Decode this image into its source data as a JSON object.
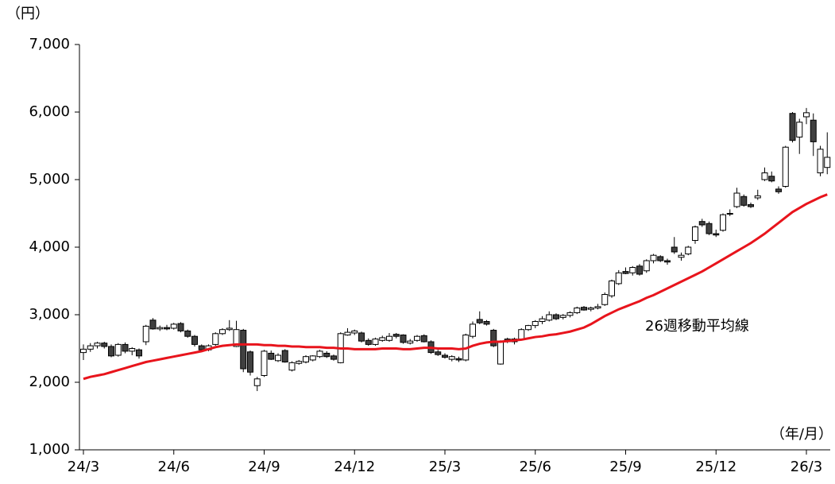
{
  "chart_data": {
    "type": "candlestick",
    "y_unit_label": "（円）",
    "x_unit_label": "（年/月）",
    "ylim": [
      1000,
      7000
    ],
    "yticks": [
      {
        "value": 1000,
        "label": "1,000"
      },
      {
        "value": 2000,
        "label": "2,000"
      },
      {
        "value": 3000,
        "label": "3,000"
      },
      {
        "value": 4000,
        "label": "4,000"
      },
      {
        "value": 5000,
        "label": "5,000"
      },
      {
        "value": 6000,
        "label": "6,000"
      },
      {
        "value": 7000,
        "label": "7,000"
      }
    ],
    "categories": [
      "24/3",
      null,
      null,
      null,
      null,
      null,
      null,
      null,
      null,
      null,
      null,
      null,
      null,
      "24/6",
      null,
      null,
      null,
      null,
      null,
      null,
      null,
      null,
      null,
      null,
      null,
      null,
      "24/9",
      null,
      null,
      null,
      null,
      null,
      null,
      null,
      null,
      null,
      null,
      null,
      null,
      "24/12",
      null,
      null,
      null,
      null,
      null,
      null,
      null,
      null,
      null,
      null,
      null,
      null,
      "25/3",
      null,
      null,
      null,
      null,
      null,
      null,
      null,
      null,
      null,
      null,
      null,
      null,
      "25/6",
      null,
      null,
      null,
      null,
      null,
      null,
      null,
      null,
      null,
      null,
      null,
      null,
      "25/9",
      null,
      null,
      null,
      null,
      null,
      null,
      null,
      null,
      null,
      null,
      null,
      null,
      "25/12",
      null,
      null,
      null,
      null,
      null,
      null,
      null,
      null,
      null,
      null,
      null,
      null,
      "26/3",
      null,
      null,
      null
    ],
    "up_color": "#ffffff",
    "down_color": "#404040",
    "candles": [
      [
        2440,
        2560,
        2330,
        2490
      ],
      [
        2490,
        2580,
        2450,
        2540
      ],
      [
        2540,
        2600,
        2500,
        2580
      ],
      [
        2580,
        2600,
        2500,
        2530
      ],
      [
        2530,
        2560,
        2370,
        2390
      ],
      [
        2400,
        2580,
        2380,
        2560
      ],
      [
        2560,
        2590,
        2430,
        2460
      ],
      [
        2460,
        2520,
        2400,
        2500
      ],
      [
        2480,
        2500,
        2350,
        2390
      ],
      [
        2600,
        2850,
        2550,
        2830
      ],
      [
        2920,
        2950,
        2780,
        2790
      ],
      [
        2790,
        2840,
        2760,
        2810
      ],
      [
        2810,
        2850,
        2770,
        2790
      ],
      [
        2800,
        2880,
        2780,
        2860
      ],
      [
        2870,
        2890,
        2740,
        2760
      ],
      [
        2760,
        2780,
        2660,
        2680
      ],
      [
        2680,
        2700,
        2530,
        2560
      ],
      [
        2540,
        2560,
        2460,
        2480
      ],
      [
        2480,
        2560,
        2460,
        2540
      ],
      [
        2560,
        2740,
        2540,
        2720
      ],
      [
        2720,
        2800,
        2700,
        2780
      ],
      [
        2780,
        2920,
        2760,
        2800
      ],
      [
        2530,
        2910,
        2520,
        2780
      ],
      [
        2770,
        2790,
        2150,
        2200
      ],
      [
        2450,
        2470,
        2100,
        2150
      ],
      [
        1950,
        2080,
        1870,
        2050
      ],
      [
        2100,
        2480,
        2080,
        2460
      ],
      [
        2430,
        2470,
        2330,
        2340
      ],
      [
        2320,
        2430,
        2300,
        2400
      ],
      [
        2470,
        2490,
        2290,
        2300
      ],
      [
        2180,
        2310,
        2160,
        2290
      ],
      [
        2280,
        2330,
        2260,
        2310
      ],
      [
        2300,
        2400,
        2280,
        2380
      ],
      [
        2330,
        2400,
        2310,
        2390
      ],
      [
        2380,
        2480,
        2360,
        2460
      ],
      [
        2430,
        2460,
        2360,
        2380
      ],
      [
        2390,
        2410,
        2320,
        2340
      ],
      [
        2290,
        2740,
        2280,
        2720
      ],
      [
        2700,
        2800,
        2690,
        2740
      ],
      [
        2730,
        2780,
        2700,
        2760
      ],
      [
        2730,
        2750,
        2590,
        2610
      ],
      [
        2620,
        2650,
        2540,
        2560
      ],
      [
        2560,
        2660,
        2540,
        2640
      ],
      [
        2620,
        2690,
        2600,
        2660
      ],
      [
        2620,
        2730,
        2600,
        2680
      ],
      [
        2710,
        2730,
        2650,
        2680
      ],
      [
        2700,
        2710,
        2570,
        2590
      ],
      [
        2580,
        2640,
        2560,
        2610
      ],
      [
        2620,
        2700,
        2600,
        2680
      ],
      [
        2690,
        2710,
        2590,
        2600
      ],
      [
        2600,
        2620,
        2420,
        2440
      ],
      [
        2450,
        2480,
        2390,
        2410
      ],
      [
        2400,
        2430,
        2350,
        2370
      ],
      [
        2340,
        2400,
        2310,
        2380
      ],
      [
        2350,
        2380,
        2300,
        2330
      ],
      [
        2330,
        2720,
        2310,
        2700
      ],
      [
        2680,
        2900,
        2650,
        2860
      ],
      [
        2930,
        3050,
        2860,
        2880
      ],
      [
        2900,
        2920,
        2840,
        2860
      ],
      [
        2770,
        2790,
        2520,
        2540
      ],
      [
        2270,
        2620,
        2260,
        2600
      ],
      [
        2640,
        2660,
        2580,
        2600
      ],
      [
        2600,
        2660,
        2560,
        2640
      ],
      [
        2640,
        2800,
        2620,
        2780
      ],
      [
        2780,
        2850,
        2760,
        2840
      ],
      [
        2840,
        2920,
        2800,
        2900
      ],
      [
        2900,
        2980,
        2860,
        2940
      ],
      [
        2920,
        3050,
        2900,
        3000
      ],
      [
        3000,
        3020,
        2920,
        2940
      ],
      [
        2960,
        3010,
        2930,
        2990
      ],
      [
        2990,
        3050,
        2960,
        3030
      ],
      [
        3030,
        3120,
        3010,
        3100
      ],
      [
        3110,
        3130,
        3060,
        3070
      ],
      [
        3080,
        3120,
        3050,
        3100
      ],
      [
        3100,
        3160,
        3080,
        3120
      ],
      [
        3150,
        3330,
        3130,
        3300
      ],
      [
        3280,
        3520,
        3250,
        3500
      ],
      [
        3460,
        3660,
        3440,
        3620
      ],
      [
        3640,
        3700,
        3600,
        3610
      ],
      [
        3620,
        3720,
        3580,
        3700
      ],
      [
        3720,
        3750,
        3580,
        3600
      ],
      [
        3650,
        3820,
        3620,
        3800
      ],
      [
        3800,
        3900,
        3760,
        3880
      ],
      [
        3860,
        3880,
        3780,
        3800
      ],
      [
        3800,
        3830,
        3740,
        3780
      ],
      [
        4000,
        4150,
        3900,
        3930
      ],
      [
        3850,
        3920,
        3800,
        3880
      ],
      [
        3900,
        4020,
        3880,
        4000
      ],
      [
        4100,
        4320,
        4050,
        4300
      ],
      [
        4380,
        4420,
        4300,
        4330
      ],
      [
        4350,
        4380,
        4180,
        4200
      ],
      [
        4200,
        4260,
        4150,
        4180
      ],
      [
        4250,
        4500,
        4230,
        4480
      ],
      [
        4490,
        4560,
        4460,
        4500
      ],
      [
        4600,
        4880,
        4580,
        4800
      ],
      [
        4750,
        4780,
        4600,
        4620
      ],
      [
        4630,
        4660,
        4580,
        4600
      ],
      [
        4730,
        4850,
        4700,
        4760
      ],
      [
        5000,
        5180,
        4980,
        5100
      ],
      [
        5050,
        5120,
        4960,
        4980
      ],
      [
        4860,
        4900,
        4790,
        4820
      ],
      [
        4900,
        5500,
        4880,
        5480
      ],
      [
        5980,
        6000,
        5550,
        5580
      ],
      [
        5630,
        5900,
        5380,
        5850
      ],
      [
        5930,
        6060,
        5820,
        5990
      ],
      [
        5880,
        5980,
        5350,
        5560
      ],
      [
        5100,
        5500,
        5050,
        5450
      ],
      [
        5180,
        5700,
        5080,
        5330
      ]
    ],
    "ma": {
      "name": "26週移動平均線",
      "color": "#e8141c",
      "values": [
        2050,
        2080,
        2100,
        2120,
        2150,
        2180,
        2210,
        2240,
        2270,
        2300,
        2320,
        2340,
        2360,
        2380,
        2400,
        2420,
        2440,
        2460,
        2490,
        2520,
        2540,
        2550,
        2560,
        2560,
        2560,
        2560,
        2550,
        2550,
        2540,
        2540,
        2530,
        2530,
        2520,
        2520,
        2520,
        2510,
        2510,
        2500,
        2500,
        2490,
        2490,
        2490,
        2490,
        2500,
        2500,
        2500,
        2490,
        2490,
        2500,
        2510,
        2510,
        2500,
        2500,
        2500,
        2490,
        2500,
        2540,
        2570,
        2590,
        2600,
        2600,
        2610,
        2620,
        2630,
        2650,
        2670,
        2680,
        2700,
        2710,
        2730,
        2750,
        2780,
        2810,
        2860,
        2920,
        2980,
        3030,
        3080,
        3120,
        3160,
        3200,
        3250,
        3290,
        3340,
        3390,
        3440,
        3490,
        3540,
        3590,
        3640,
        3700,
        3760,
        3820,
        3880,
        3940,
        4000,
        4060,
        4130,
        4200,
        4280,
        4360,
        4440,
        4520,
        4580,
        4640,
        4690,
        4740,
        4780
      ]
    }
  }
}
